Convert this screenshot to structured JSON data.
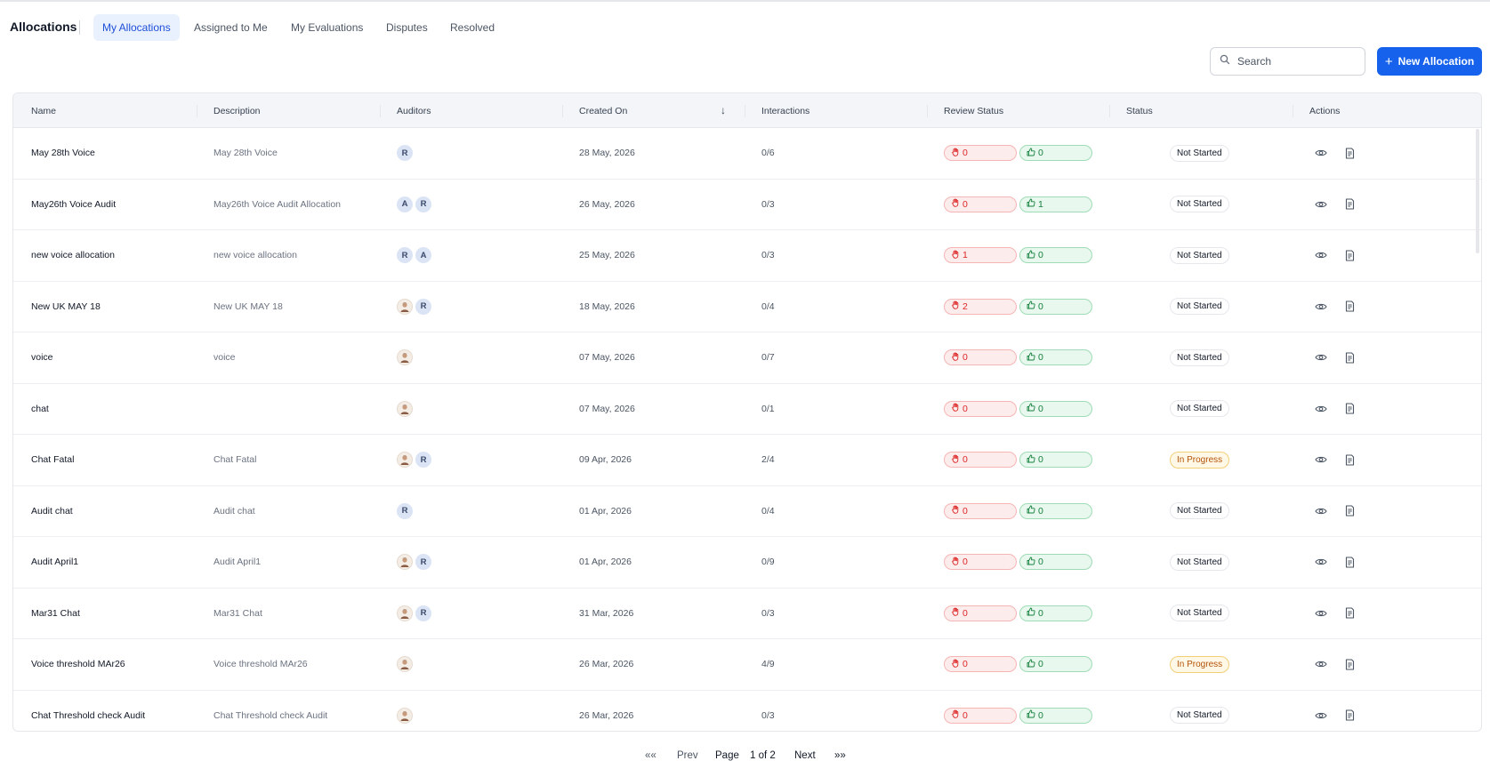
{
  "app": {
    "title": "Allocations"
  },
  "tabs": [
    {
      "label": "My Allocations",
      "active": true
    },
    {
      "label": "Assigned to Me",
      "active": false
    },
    {
      "label": "My Evaluations",
      "active": false
    },
    {
      "label": "Disputes",
      "active": false
    },
    {
      "label": "Resolved",
      "active": false
    }
  ],
  "toolbar": {
    "search_placeholder": "Search",
    "new_button_icon": "+",
    "new_button_label": "New Allocation"
  },
  "table": {
    "headers": {
      "name": "Name",
      "description": "Description",
      "auditors": "Auditors",
      "created_on": "Created On",
      "interactions": "Interactions",
      "review_status": "Review Status",
      "status": "Status",
      "actions": "Actions"
    },
    "sort_indicator": "↓",
    "rows": [
      {
        "name": "May 28th Voice",
        "description": "May 28th Voice",
        "auditors": [
          "R"
        ],
        "created_on": "28 May, 2026",
        "interactions": "0/6",
        "disputed": "0",
        "approved": "0",
        "status": "Not Started"
      },
      {
        "name": "May26th Voice Audit",
        "description": "May26th Voice Audit Allocation",
        "auditors": [
          "A",
          "R"
        ],
        "created_on": "26 May, 2026",
        "interactions": "0/3",
        "disputed": "0",
        "approved": "1",
        "status": "Not Started"
      },
      {
        "name": "new voice allocation",
        "description": "new voice allocation",
        "auditors": [
          "R",
          "A"
        ],
        "created_on": "25 May, 2026",
        "interactions": "0/3",
        "disputed": "1",
        "approved": "0",
        "status": "Not Started"
      },
      {
        "name": "New UK MAY 18",
        "description": "New UK MAY 18",
        "auditors": [
          "photo",
          "R"
        ],
        "created_on": "18 May, 2026",
        "interactions": "0/4",
        "disputed": "2",
        "approved": "0",
        "status": "Not Started"
      },
      {
        "name": "voice",
        "description": "voice",
        "auditors": [
          "photo"
        ],
        "created_on": "07 May, 2026",
        "interactions": "0/7",
        "disputed": "0",
        "approved": "0",
        "status": "Not Started"
      },
      {
        "name": "chat",
        "description": "",
        "auditors": [
          "photo"
        ],
        "created_on": "07 May, 2026",
        "interactions": "0/1",
        "disputed": "0",
        "approved": "0",
        "status": "Not Started"
      },
      {
        "name": "Chat Fatal",
        "description": "Chat Fatal",
        "auditors": [
          "photo",
          "R"
        ],
        "created_on": "09 Apr, 2026",
        "interactions": "2/4",
        "disputed": "0",
        "approved": "0",
        "status": "In Progress"
      },
      {
        "name": "Audit chat",
        "description": "Audit chat",
        "auditors": [
          "R"
        ],
        "created_on": "01 Apr, 2026",
        "interactions": "0/4",
        "disputed": "0",
        "approved": "0",
        "status": "Not Started"
      },
      {
        "name": "Audit April1",
        "description": "Audit April1",
        "auditors": [
          "photo",
          "R"
        ],
        "created_on": "01 Apr, 2026",
        "interactions": "0/9",
        "disputed": "0",
        "approved": "0",
        "status": "Not Started"
      },
      {
        "name": "Mar31 Chat",
        "description": "Mar31 Chat",
        "auditors": [
          "photo",
          "R"
        ],
        "created_on": "31 Mar, 2026",
        "interactions": "0/3",
        "disputed": "0",
        "approved": "0",
        "status": "Not Started"
      },
      {
        "name": "Voice threshold MAr26",
        "description": "Voice threshold MAr26",
        "auditors": [
          "photo"
        ],
        "created_on": "26 Mar, 2026",
        "interactions": "4/9",
        "disputed": "0",
        "approved": "0",
        "status": "In Progress"
      },
      {
        "name": "Chat Threshold check Audit",
        "description": "Chat Threshold check Audit",
        "auditors": [
          "photo"
        ],
        "created_on": "26 Mar, 2026",
        "interactions": "0/3",
        "disputed": "0",
        "approved": "0",
        "status": "Not Started"
      }
    ]
  },
  "pagination": {
    "first": "«",
    "prev": "Prev",
    "page_label": "Page",
    "page_value": "1 of 2",
    "next": "Next",
    "last": "»"
  },
  "colors": {
    "accent": "#1662ec",
    "active_tab_bg": "#eaf1fe",
    "negative": "#dc2626",
    "positive": "#15803d",
    "in_progress": "#b45309"
  },
  "icons": {
    "search": "search-icon",
    "disputed": "hand-icon",
    "approved": "thumbs-up-icon",
    "view": "eye-icon",
    "report": "document-icon",
    "auditor_photo": "avatar-photo-icon"
  }
}
